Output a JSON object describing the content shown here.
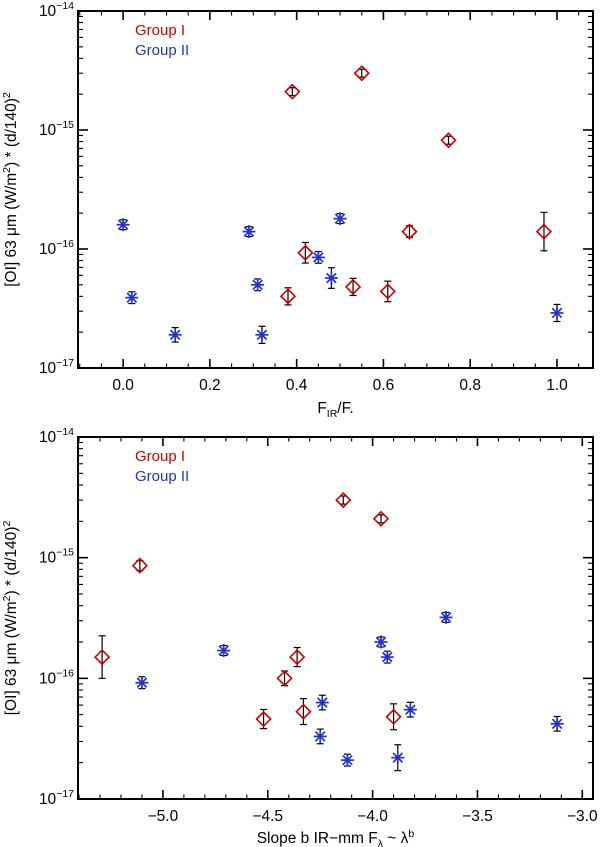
{
  "figure": {
    "background": "#ffffff",
    "axis_color": "#000000",
    "error_bar_color": "#000000"
  },
  "legend": {
    "entries": [
      {
        "label": "Group I",
        "color": "#cc0000"
      },
      {
        "label": "Group II",
        "color": "#2233cc"
      }
    ]
  },
  "chart_data": [
    {
      "type": "scatter",
      "panel": "top",
      "y_scale": "log",
      "xlabel_text": "F_IR/F.",
      "xlabel_parts": [
        [
          "F",
          "n"
        ],
        [
          "IR",
          "sub"
        ],
        [
          "/F.",
          "n"
        ]
      ],
      "ylabel_text": "[OI] 63 um (W/m2) * (d/140)2",
      "ylabel_parts": [
        [
          "[OI] 63 μm (W/m",
          "n"
        ],
        [
          "2",
          "sup"
        ],
        [
          ") * (d/140)",
          "n"
        ],
        [
          "2",
          "sup"
        ]
      ],
      "xlim": [
        -0.104,
        1.083
      ],
      "x_major_ticks": [
        0.0,
        0.2,
        0.4,
        0.6,
        0.8,
        1.0
      ],
      "x_tick_labels": [
        "0.0",
        "0.2",
        "0.4",
        "0.6",
        "0.8",
        "1.0"
      ],
      "x_minor_step": 0.05,
      "y_exponent_ticks": [
        -14,
        -15,
        -16,
        -17
      ],
      "y_tick_labels": [
        "10⁻¹⁴",
        "10⁻¹⁵",
        "10⁻¹⁶",
        "10⁻¹⁷"
      ],
      "legend_position": "top-left",
      "grid": false,
      "series": [
        {
          "name": "Group I",
          "marker": "open-diamond",
          "color": "#cc0000",
          "points": [
            {
              "x": 0.39,
              "y": 2.1e-15,
              "err": 1.08
            },
            {
              "x": 0.55,
              "y": 3e-15,
              "err": 1.08
            },
            {
              "x": 0.75,
              "y": 8.2e-16,
              "err": 1.08
            },
            {
              "x": 0.42,
              "y": 9.3e-17,
              "err": 1.22
            },
            {
              "x": 0.66,
              "y": 1.4e-16,
              "err": 1.12
            },
            {
              "x": 0.53,
              "y": 4.8e-17,
              "err": 1.18
            },
            {
              "x": 0.61,
              "y": 4.4e-17,
              "err": 1.22
            },
            {
              "x": 0.38,
              "y": 4e-17,
              "err": 1.18
            },
            {
              "x": 0.97,
              "y": 1.4e-16,
              "err": 1.45
            }
          ]
        },
        {
          "name": "Group II",
          "marker": "asterisk",
          "color": "#2233cc",
          "points": [
            {
              "x": 0.0,
              "y": 1.6e-16,
              "err": 1.1
            },
            {
              "x": 0.02,
              "y": 3.9e-17,
              "err": 1.12
            },
            {
              "x": 0.12,
              "y": 1.9e-17,
              "err": 1.15
            },
            {
              "x": 0.29,
              "y": 1.4e-16,
              "err": 1.1
            },
            {
              "x": 0.31,
              "y": 5e-17,
              "err": 1.12
            },
            {
              "x": 0.32,
              "y": 1.9e-17,
              "err": 1.18
            },
            {
              "x": 0.45,
              "y": 8.5e-17,
              "err": 1.12
            },
            {
              "x": 0.48,
              "y": 5.7e-17,
              "err": 1.22
            },
            {
              "x": 0.5,
              "y": 1.8e-16,
              "err": 1.1
            },
            {
              "x": 1.0,
              "y": 2.9e-17,
              "err": 1.18
            }
          ]
        }
      ]
    },
    {
      "type": "scatter",
      "panel": "bottom",
      "y_scale": "log",
      "xlabel_text": "Slope b IR−mm F_λ ~ λ^b",
      "xlabel_parts": [
        [
          "Slope b IR−mm F",
          "n"
        ],
        [
          "λ",
          "sub"
        ],
        [
          " ~ λ",
          "n"
        ],
        [
          "b",
          "sup"
        ]
      ],
      "ylabel_text": "[OI] 63 um (W/m2) * (d/140)2",
      "ylabel_parts": [
        [
          "[OI] 63 μm (W/m",
          "n"
        ],
        [
          "2",
          "sup"
        ],
        [
          ") * (d/140)",
          "n"
        ],
        [
          "2",
          "sup"
        ]
      ],
      "xlim": [
        -5.405,
        -2.949
      ],
      "x_major_ticks": [
        -5.0,
        -4.5,
        -4.0,
        -3.5,
        -3.0
      ],
      "x_tick_labels": [
        "−5.0",
        "−4.5",
        "−4.0",
        "−3.5",
        "−3.0"
      ],
      "x_minor_step": 0.1,
      "y_exponent_ticks": [
        -14,
        -15,
        -16,
        -17
      ],
      "y_tick_labels": [
        "10⁻¹⁴",
        "10⁻¹⁵",
        "10⁻¹⁶",
        "10⁻¹⁷"
      ],
      "legend_position": "top-left",
      "grid": false,
      "series": [
        {
          "name": "Group I",
          "marker": "open-diamond",
          "color": "#cc0000",
          "points": [
            {
              "x": -5.29,
              "y": 1.5e-16,
              "err": 1.5
            },
            {
              "x": -5.11,
              "y": 8.6e-16,
              "err": 1.1
            },
            {
              "x": -4.52,
              "y": 4.6e-17,
              "err": 1.2
            },
            {
              "x": -4.42,
              "y": 1e-16,
              "err": 1.15
            },
            {
              "x": -4.36,
              "y": 1.5e-16,
              "err": 1.2
            },
            {
              "x": -4.33,
              "y": 5.3e-17,
              "err": 1.28
            },
            {
              "x": -4.14,
              "y": 3e-15,
              "err": 1.08
            },
            {
              "x": -3.96,
              "y": 2.1e-15,
              "err": 1.08
            },
            {
              "x": -3.9,
              "y": 4.8e-17,
              "err": 1.28
            }
          ]
        },
        {
          "name": "Group II",
          "marker": "asterisk",
          "color": "#2233cc",
          "points": [
            {
              "x": -5.1,
              "y": 9.2e-17,
              "err": 1.12
            },
            {
              "x": -4.71,
              "y": 1.7e-16,
              "err": 1.1
            },
            {
              "x": -4.24,
              "y": 6.3e-17,
              "err": 1.15
            },
            {
              "x": -4.25,
              "y": 3.3e-17,
              "err": 1.15
            },
            {
              "x": -4.12,
              "y": 2.1e-17,
              "err": 1.12
            },
            {
              "x": -3.96,
              "y": 2e-16,
              "err": 1.1
            },
            {
              "x": -3.93,
              "y": 1.5e-16,
              "err": 1.12
            },
            {
              "x": -3.88,
              "y": 2.2e-17,
              "err": 1.28
            },
            {
              "x": -3.82,
              "y": 5.5e-17,
              "err": 1.15
            },
            {
              "x": -3.65,
              "y": 3.2e-16,
              "err": 1.1
            },
            {
              "x": -3.12,
              "y": 4.2e-17,
              "err": 1.15
            }
          ]
        }
      ]
    }
  ]
}
